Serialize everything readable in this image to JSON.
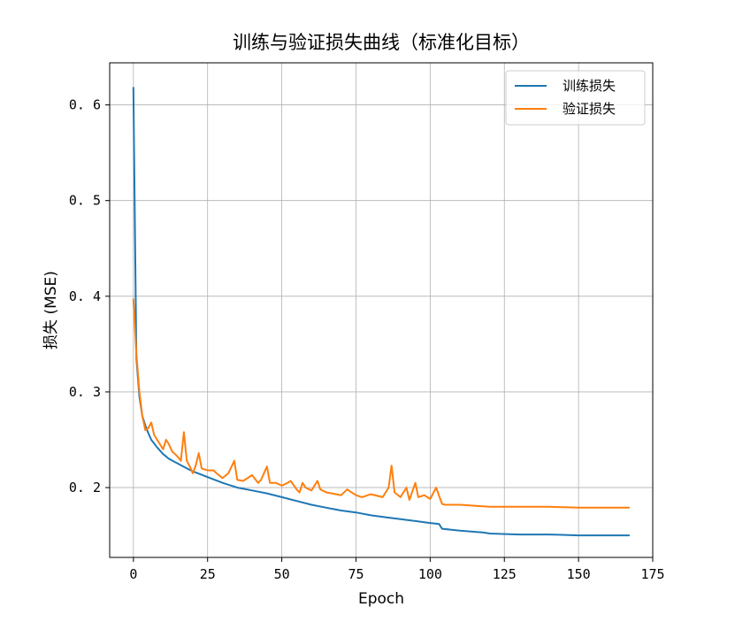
{
  "chart_data": {
    "type": "line",
    "title": "训练与验证损失曲线（标准化目标）",
    "xlabel": "Epoch",
    "ylabel": "损失 (MSE)",
    "xlim": [
      -8,
      175
    ],
    "ylim": [
      0.127,
      0.644
    ],
    "xticks": [
      0,
      25,
      50,
      75,
      100,
      125,
      150,
      175
    ],
    "yticks": [
      0.2,
      0.3,
      0.4,
      0.5,
      0.6
    ],
    "grid": true,
    "legend_position": "top-right",
    "series": [
      {
        "name": "训练损失",
        "color": "#1f77b4",
        "x": [
          0,
          1,
          2,
          3,
          4,
          5,
          6,
          8,
          10,
          12,
          15,
          18,
          20,
          25,
          30,
          35,
          40,
          45,
          50,
          55,
          60,
          65,
          70,
          75,
          80,
          85,
          90,
          95,
          100,
          103,
          104,
          110,
          118,
          120,
          130,
          140,
          150,
          160,
          167
        ],
        "values": [
          0.618,
          0.335,
          0.295,
          0.275,
          0.265,
          0.257,
          0.25,
          0.242,
          0.235,
          0.23,
          0.225,
          0.22,
          0.217,
          0.211,
          0.205,
          0.2,
          0.197,
          0.194,
          0.19,
          0.186,
          0.182,
          0.179,
          0.176,
          0.174,
          0.171,
          0.169,
          0.167,
          0.165,
          0.163,
          0.162,
          0.157,
          0.155,
          0.153,
          0.152,
          0.151,
          0.151,
          0.15,
          0.15,
          0.15
        ]
      },
      {
        "name": "验证损失",
        "color": "#ff7f0e",
        "x": [
          0,
          1,
          2,
          3,
          4,
          5,
          6,
          7,
          8,
          9,
          10,
          11,
          12,
          13,
          14,
          15,
          16,
          17,
          18,
          19,
          20,
          21,
          22,
          23,
          25,
          27,
          28,
          30,
          32,
          34,
          35,
          37,
          40,
          42,
          43,
          45,
          46,
          48,
          50,
          52,
          53,
          55,
          56,
          57,
          58,
          60,
          62,
          63,
          65,
          70,
          72,
          75,
          77,
          80,
          84,
          86,
          87,
          88,
          90,
          92,
          93,
          95,
          96,
          98,
          100,
          102,
          104,
          105,
          110,
          115,
          120,
          125,
          130,
          140,
          150,
          160,
          167
        ],
        "values": [
          0.397,
          0.34,
          0.3,
          0.275,
          0.26,
          0.262,
          0.268,
          0.255,
          0.25,
          0.245,
          0.24,
          0.25,
          0.245,
          0.238,
          0.235,
          0.232,
          0.228,
          0.258,
          0.228,
          0.222,
          0.215,
          0.223,
          0.236,
          0.22,
          0.218,
          0.218,
          0.215,
          0.21,
          0.215,
          0.228,
          0.208,
          0.207,
          0.213,
          0.205,
          0.208,
          0.222,
          0.205,
          0.205,
          0.202,
          0.205,
          0.207,
          0.198,
          0.195,
          0.205,
          0.2,
          0.197,
          0.207,
          0.198,
          0.195,
          0.192,
          0.198,
          0.192,
          0.19,
          0.193,
          0.19,
          0.2,
          0.223,
          0.195,
          0.19,
          0.2,
          0.187,
          0.205,
          0.19,
          0.192,
          0.188,
          0.2,
          0.183,
          0.182,
          0.182,
          0.181,
          0.18,
          0.18,
          0.18,
          0.18,
          0.179,
          0.179,
          0.179
        ]
      }
    ]
  }
}
